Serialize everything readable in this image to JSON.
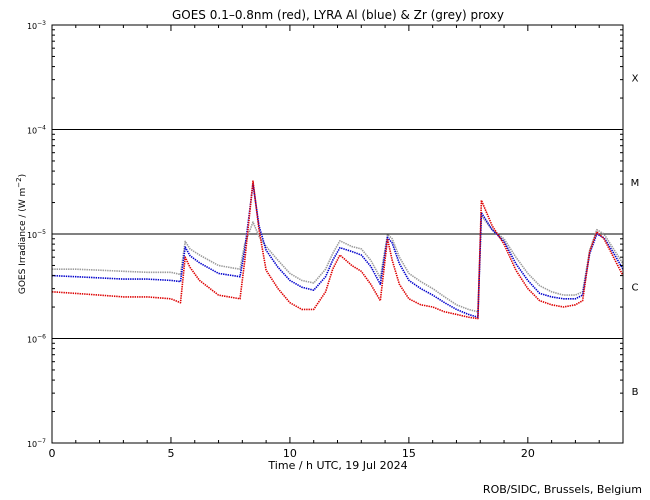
{
  "chart_data": {
    "type": "line",
    "title": "GOES 0.1–0.8nm (red), LYRA Al (blue) & Zr (grey) proxy",
    "xlabel": "Time / h UTC, 19 Jul 2024",
    "ylabel_main": "GOES Irradiance / (W m",
    "ylabel_exp": "−2",
    "ylabel_end": ")",
    "xlim": [
      0,
      24
    ],
    "ylim_log10": [
      -7,
      -3
    ],
    "y_scale": "log",
    "x_ticks": [
      {
        "value": 0,
        "label": "0"
      },
      {
        "value": 5,
        "label": "5"
      },
      {
        "value": 10,
        "label": "10"
      },
      {
        "value": 15,
        "label": "15"
      },
      {
        "value": 20,
        "label": "20"
      }
    ],
    "y_ticks": [
      {
        "exp": -3,
        "label": "10",
        "sup": "−3"
      },
      {
        "exp": -4,
        "label": "10",
        "sup": "−4"
      },
      {
        "exp": -5,
        "label": "10",
        "sup": "−5"
      },
      {
        "exp": -6,
        "label": "10",
        "sup": "−6"
      },
      {
        "exp": -7,
        "label": "10",
        "sup": "−7"
      }
    ],
    "threshold_lines_exp": [
      -4,
      -5,
      -6
    ],
    "flare_classes": [
      {
        "label": "X",
        "center_exp": -3.5
      },
      {
        "label": "M",
        "center_exp": -4.5
      },
      {
        "label": "C",
        "center_exp": -5.5
      },
      {
        "label": "B",
        "center_exp": -6.5
      }
    ],
    "series": [
      {
        "color": "#9a9a9a",
        "x": [
          0,
          1,
          2,
          3,
          4,
          5,
          5.4,
          5.6,
          5.8,
          6.2,
          7,
          7.9,
          8.1,
          8.45,
          8.7,
          9,
          9.5,
          10,
          10.5,
          11,
          11.5,
          11.8,
          12.1,
          12.6,
          13,
          13.4,
          13.8,
          14.1,
          14.3,
          14.6,
          15,
          15.5,
          16,
          16.5,
          17,
          17.5,
          17.9,
          18.05,
          18.5,
          19,
          19.5,
          20,
          20.5,
          21,
          21.5,
          22,
          22.3,
          22.6,
          22.9,
          23.2,
          23.6,
          24
        ],
        "y": [
          4.6e-06,
          4.6e-06,
          4.5e-06,
          4.4e-06,
          4.3e-06,
          4.3e-06,
          4.1e-06,
          8.5e-06,
          7.2e-06,
          6.3e-06,
          5e-06,
          4.6e-06,
          8e-06,
          1.3e-05,
          9.5e-06,
          7.6e-06,
          5.6e-06,
          4.2e-06,
          3.6e-06,
          3.4e-06,
          4.6e-06,
          6.5e-06,
          8.6e-06,
          7.6e-06,
          7.2e-06,
          5.6e-06,
          3.8e-06,
          9.9e-06,
          9e-06,
          6e-06,
          4.2e-06,
          3.5e-06,
          3e-06,
          2.5e-06,
          2.1e-06,
          1.9e-06,
          1.8e-06,
          1.5e-05,
          1.1e-05,
          9e-06,
          6e-06,
          4.2e-06,
          3.2e-06,
          2.8e-06,
          2.6e-06,
          2.6e-06,
          2.8e-06,
          7e-06,
          1.1e-05,
          1e-05,
          7.2e-06,
          5.2e-06
        ]
      },
      {
        "color": "#0000cc",
        "x": [
          0,
          1,
          2,
          3,
          4,
          5,
          5.4,
          5.6,
          5.8,
          6.2,
          7,
          7.9,
          8.1,
          8.45,
          8.7,
          9,
          9.5,
          10,
          10.5,
          11,
          11.5,
          11.8,
          12.1,
          12.6,
          13,
          13.4,
          13.8,
          14.1,
          14.3,
          14.6,
          15,
          15.5,
          16,
          16.5,
          17,
          17.5,
          17.9,
          18.05,
          18.5,
          19,
          19.5,
          20,
          20.5,
          21,
          21.5,
          22,
          22.3,
          22.6,
          22.9,
          23.2,
          23.6,
          24
        ],
        "y": [
          4e-06,
          3.9e-06,
          3.8e-06,
          3.7e-06,
          3.7e-06,
          3.6e-06,
          3.5e-06,
          7.5e-06,
          6.2e-06,
          5.3e-06,
          4.2e-06,
          3.9e-06,
          7e-06,
          3e-05,
          1.2e-05,
          7e-06,
          4.8e-06,
          3.6e-06,
          3.1e-06,
          2.9e-06,
          3.9e-06,
          5.6e-06,
          7.4e-06,
          6.8e-06,
          6.3e-06,
          4.9e-06,
          3.3e-06,
          9.3e-06,
          8.2e-06,
          5.2e-06,
          3.6e-06,
          3e-06,
          2.6e-06,
          2.2e-06,
          1.9e-06,
          1.7e-06,
          1.6e-06,
          1.6e-05,
          1.1e-05,
          8.5e-06,
          5.2e-06,
          3.6e-06,
          2.7e-06,
          2.5e-06,
          2.4e-06,
          2.4e-06,
          2.6e-06,
          6.5e-06,
          1e-05,
          9.2e-06,
          6.6e-06,
          4.6e-06
        ]
      },
      {
        "color": "#dd0000",
        "x": [
          0,
          1,
          2,
          3,
          4,
          5,
          5.4,
          5.6,
          5.8,
          6.2,
          7,
          7.9,
          8.1,
          8.45,
          8.7,
          9,
          9.5,
          10,
          10.5,
          11,
          11.5,
          11.8,
          12.1,
          12.6,
          13,
          13.4,
          13.8,
          14.1,
          14.3,
          14.6,
          15,
          15.5,
          16,
          16.5,
          17,
          17.5,
          17.9,
          18.05,
          18.5,
          19,
          19.5,
          20,
          20.5,
          21,
          21.5,
          22,
          22.3,
          22.6,
          22.9,
          23.2,
          23.6,
          24
        ],
        "y": [
          2.8e-06,
          2.7e-06,
          2.6e-06,
          2.5e-06,
          2.5e-06,
          2.4e-06,
          2.2e-06,
          6e-06,
          4.8e-06,
          3.6e-06,
          2.6e-06,
          2.4e-06,
          5.5e-06,
          3.2e-05,
          1.1e-05,
          4.5e-06,
          3e-06,
          2.2e-06,
          1.9e-06,
          1.9e-06,
          2.8e-06,
          4.6e-06,
          6.3e-06,
          5e-06,
          4.4e-06,
          3.3e-06,
          2.3e-06,
          9e-06,
          5.6e-06,
          3.3e-06,
          2.4e-06,
          2.1e-06,
          2e-06,
          1.8e-06,
          1.7e-06,
          1.6e-06,
          1.55e-06,
          2.1e-05,
          1.2e-05,
          8e-06,
          4.5e-06,
          3e-06,
          2.3e-06,
          2.1e-06,
          2e-06,
          2.1e-06,
          2.3e-06,
          6.8e-06,
          1.05e-05,
          9e-06,
          6e-06,
          4e-06
        ]
      }
    ]
  },
  "credit": "ROB/SIDC, Brussels, Belgium"
}
